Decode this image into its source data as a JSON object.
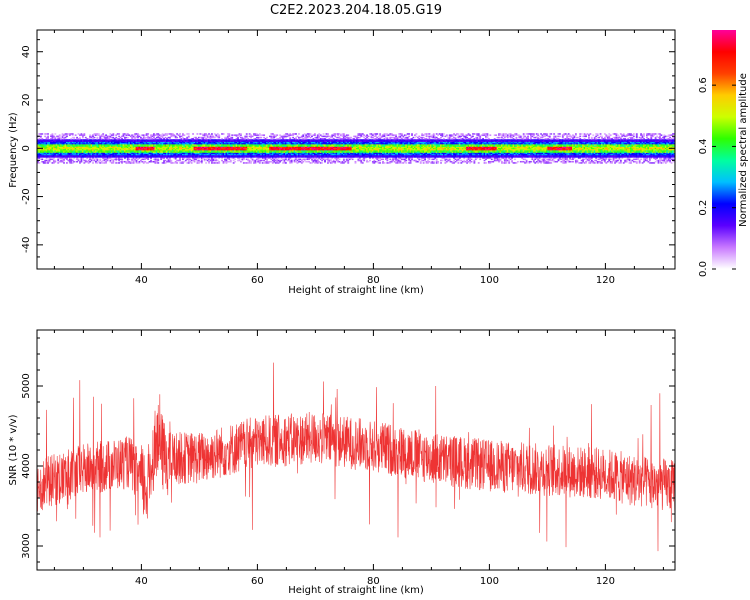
{
  "title": "C2E2.2023.204.18.05.G19",
  "chart_data": [
    {
      "type": "heatmap",
      "xlabel": "Height of straight line (km)",
      "ylabel": "Frequency (Hz)",
      "xlim": [
        22,
        132
      ],
      "ylim": [
        -50,
        49
      ],
      "xticks": [
        40,
        60,
        80,
        100,
        120
      ],
      "yticks": [
        -40,
        -20,
        0,
        20,
        40
      ],
      "band_center_hz": 0,
      "band_core_halfwidth_hz": 2.5,
      "band_outer_halfwidth_hz": 6,
      "peak_regions_km": [
        [
          39,
          42
        ],
        [
          49,
          58
        ],
        [
          62,
          76
        ],
        [
          96,
          101
        ],
        [
          110,
          114
        ]
      ],
      "colorbar": {
        "label": "Normalized spectral amplitude",
        "range": [
          0,
          0.78
        ],
        "ticks": [
          0.0,
          0.2,
          0.4,
          0.6
        ],
        "colors": [
          "#ffffff",
          "#c878ff",
          "#5a00ff",
          "#0000ff",
          "#00bfff",
          "#00ff9f",
          "#2eff00",
          "#ccff00",
          "#ffcc00",
          "#ff4000",
          "#ff0000",
          "#ff0099"
        ]
      }
    },
    {
      "type": "line",
      "xlabel": "Height of straight line (km)",
      "ylabel": "SNR (10 * v/v)",
      "xlim": [
        22,
        132
      ],
      "ylim": [
        2700,
        5700
      ],
      "xticks": [
        40,
        60,
        80,
        100,
        120
      ],
      "yticks": [
        3000,
        4000,
        5000
      ],
      "color": "#ee3333",
      "trend": {
        "x": [
          22,
          30,
          38,
          41,
          42.5,
          44,
          50,
          60,
          70,
          80,
          90,
          100,
          110,
          120,
          126,
          132
        ],
        "y": [
          3750,
          3950,
          4050,
          3700,
          4350,
          4100,
          4100,
          4300,
          4350,
          4250,
          4100,
          4000,
          3950,
          3900,
          3800,
          3750
        ]
      }
    }
  ]
}
